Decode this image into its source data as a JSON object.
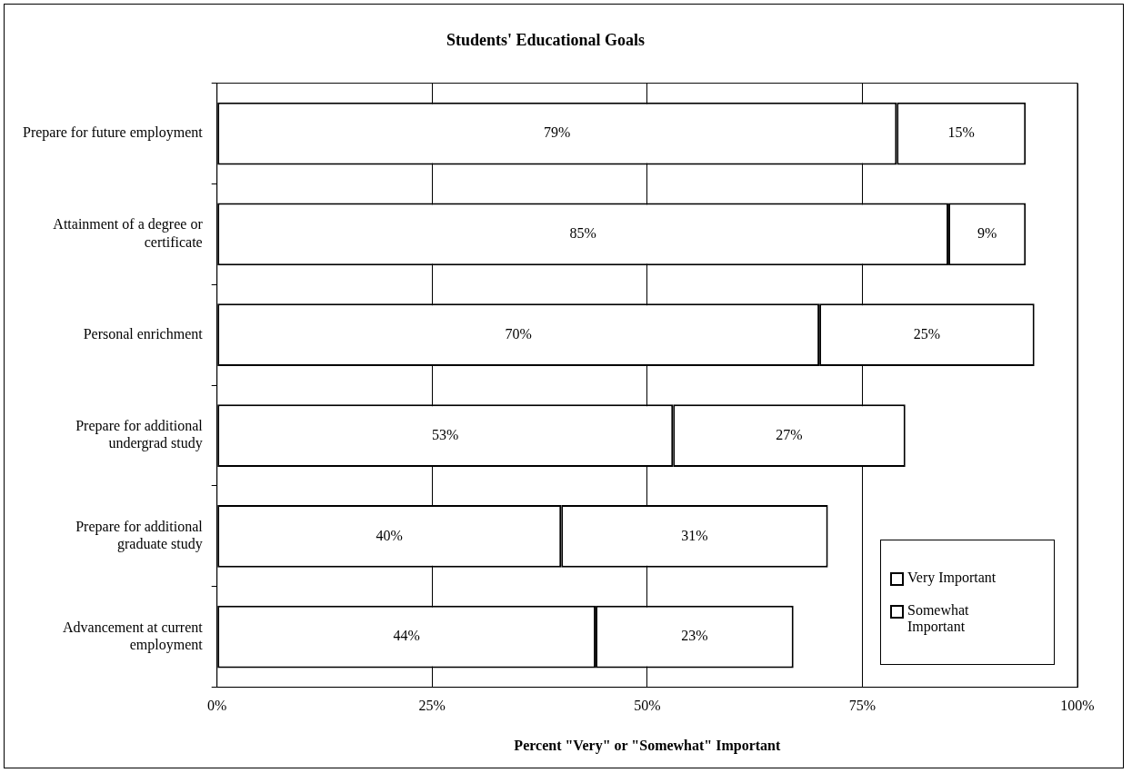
{
  "chart_data": {
    "type": "bar",
    "orientation": "horizontal",
    "stacked": true,
    "title": "Students' Educational Goals",
    "xlabel": "Percent \"Very\" or \"Somewhat\" Important",
    "categories": [
      "Prepare for future employment",
      "Attainment of a degree or certificate",
      "Personal enrichment",
      "Prepare for additional undergrad study",
      "Prepare for additional graduate study",
      "Advancement at current employment"
    ],
    "series": [
      {
        "name": "Very Important",
        "color": "#ffffff",
        "values": [
          79,
          85,
          70,
          53,
          40,
          44
        ],
        "value_labels": [
          "79%",
          "85%",
          "70%",
          "53%",
          "40%",
          "44%"
        ]
      },
      {
        "name": "Somewhat Important",
        "color": "#ffffff",
        "values": [
          15,
          9,
          25,
          27,
          31,
          23
        ],
        "value_labels": [
          "15%",
          "9%",
          "25%",
          "27%",
          "31%",
          "23%"
        ]
      }
    ],
    "xlim": [
      0,
      100
    ],
    "xticks": [
      {
        "value": 0,
        "label": "0%"
      },
      {
        "value": 25,
        "label": "25%"
      },
      {
        "value": 50,
        "label": "50%"
      },
      {
        "value": 75,
        "label": "75%"
      },
      {
        "value": 100,
        "label": "100%"
      }
    ],
    "grid": "x",
    "legend": "bottom right"
  }
}
